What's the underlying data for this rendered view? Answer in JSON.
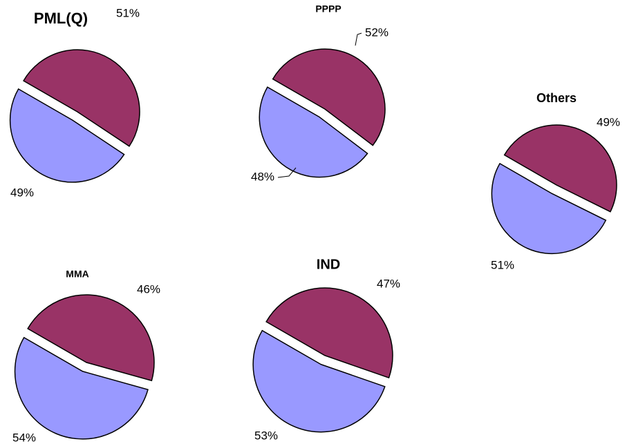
{
  "chart_data": [
    {
      "type": "pie",
      "title": "PML(Q)",
      "values": [
        51,
        49
      ],
      "value_labels": [
        "51%",
        "49%"
      ],
      "colors": [
        "#993366",
        "#9999ff"
      ]
    },
    {
      "type": "pie",
      "title": "PPPP",
      "values": [
        52,
        48
      ],
      "value_labels": [
        "52%",
        "48%"
      ],
      "colors": [
        "#993366",
        "#9999ff"
      ]
    },
    {
      "type": "pie",
      "title": "Others",
      "values": [
        49,
        51
      ],
      "value_labels": [
        "49%",
        "51%"
      ],
      "colors": [
        "#993366",
        "#9999ff"
      ]
    },
    {
      "type": "pie",
      "title": "MMA",
      "values": [
        46,
        54
      ],
      "value_labels": [
        "46%",
        "54%"
      ],
      "colors": [
        "#993366",
        "#9999ff"
      ]
    },
    {
      "type": "pie",
      "title": "IND",
      "values": [
        47,
        53
      ],
      "value_labels": [
        "47%",
        "53%"
      ],
      "colors": [
        "#993366",
        "#9999ff"
      ]
    }
  ]
}
